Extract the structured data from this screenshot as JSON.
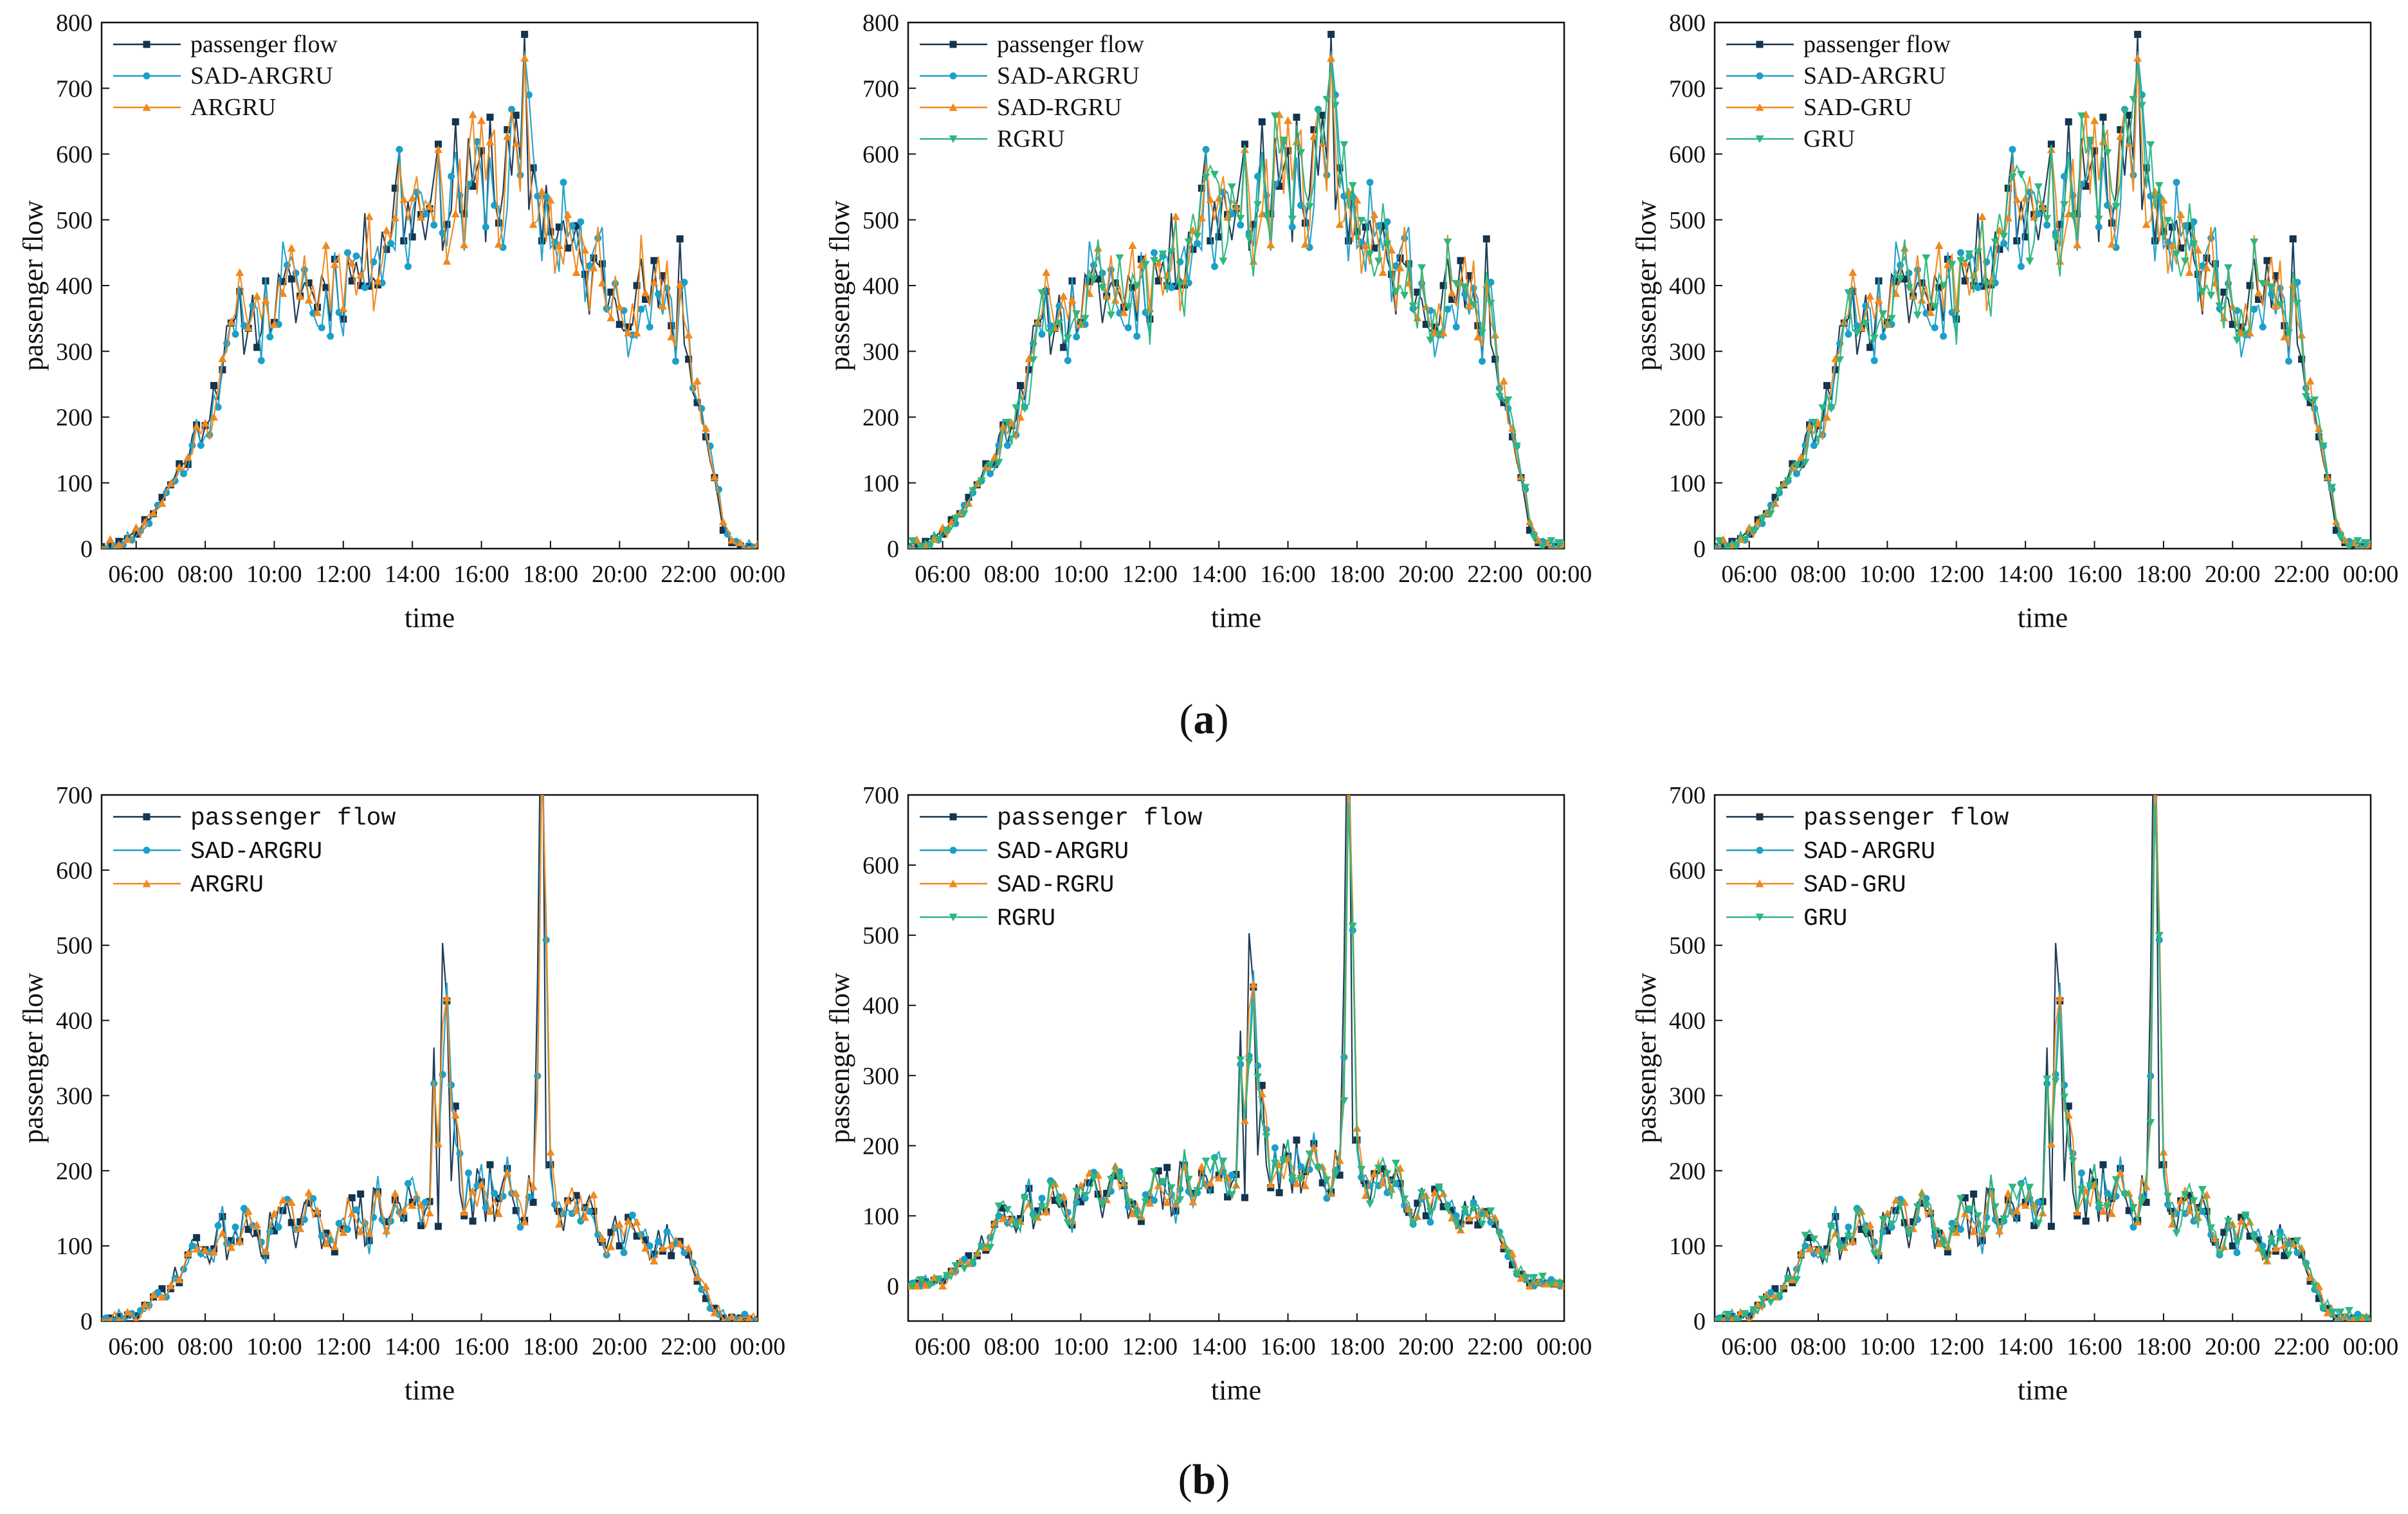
{
  "figure": {
    "caption_a": {
      "open": "(",
      "letter": "a",
      "close": ")"
    },
    "caption_b": {
      "open": "(",
      "letter": "b",
      "close": ")"
    }
  },
  "colors": {
    "passenger flow": "#14344f",
    "SAD-ARGRU": "#1c9fc8",
    "ARGRU": "#f0891e",
    "SAD-RGRU": "#f0891e",
    "SAD-GRU": "#f0891e",
    "RGRU": "#2db77e",
    "GRU": "#2db77e"
  },
  "chart_data": [
    {
      "id": "a1",
      "type": "line",
      "row": "a",
      "profile": "a",
      "seed": 11,
      "xlabel": "time",
      "ylabel": "passenger flow",
      "xlim": [
        5,
        24
      ],
      "ylim": [
        0,
        800
      ],
      "yticks": [
        0,
        100,
        200,
        300,
        400,
        500,
        600,
        700,
        800
      ],
      "xticks": [
        "06:00",
        "08:00",
        "10:00",
        "12:00",
        "14:00",
        "16:00",
        "18:00",
        "20:00",
        "22:00",
        "00:00"
      ],
      "legend_position": "top-left",
      "legend_font": "serif",
      "series": [
        {
          "name": "passenger flow",
          "marker": "square"
        },
        {
          "name": "SAD-ARGRU",
          "marker": "circle"
        },
        {
          "name": "ARGRU",
          "marker": "triangle-up"
        }
      ]
    },
    {
      "id": "a2",
      "type": "line",
      "row": "a",
      "profile": "a",
      "seed": 11,
      "xlabel": "time",
      "ylabel": "passenger flow",
      "xlim": [
        5,
        24
      ],
      "ylim": [
        0,
        800
      ],
      "yticks": [
        0,
        100,
        200,
        300,
        400,
        500,
        600,
        700,
        800
      ],
      "xticks": [
        "06:00",
        "08:00",
        "10:00",
        "12:00",
        "14:00",
        "16:00",
        "18:00",
        "20:00",
        "22:00",
        "00:00"
      ],
      "legend_position": "top-left",
      "legend_font": "serif",
      "series": [
        {
          "name": "passenger flow",
          "marker": "square"
        },
        {
          "name": "SAD-ARGRU",
          "marker": "circle"
        },
        {
          "name": "SAD-RGRU",
          "marker": "triangle-up"
        },
        {
          "name": "RGRU",
          "marker": "triangle-down"
        }
      ]
    },
    {
      "id": "a3",
      "type": "line",
      "row": "a",
      "profile": "a",
      "seed": 11,
      "xlabel": "time",
      "ylabel": "passenger flow",
      "xlim": [
        5,
        24
      ],
      "ylim": [
        0,
        800
      ],
      "yticks": [
        0,
        100,
        200,
        300,
        400,
        500,
        600,
        700,
        800
      ],
      "xticks": [
        "06:00",
        "08:00",
        "10:00",
        "12:00",
        "14:00",
        "16:00",
        "18:00",
        "20:00",
        "22:00",
        "00:00"
      ],
      "legend_position": "top-left",
      "legend_font": "serif",
      "series": [
        {
          "name": "passenger flow",
          "marker": "square"
        },
        {
          "name": "SAD-ARGRU",
          "marker": "circle"
        },
        {
          "name": "SAD-GRU",
          "marker": "triangle-up"
        },
        {
          "name": "GRU",
          "marker": "triangle-down"
        }
      ]
    },
    {
      "id": "b1",
      "type": "line",
      "row": "b",
      "profile": "b",
      "seed": 29,
      "xlabel": "time",
      "ylabel": "passenger flow",
      "xlim": [
        5,
        24
      ],
      "ylim": [
        0,
        700
      ],
      "yticks": [
        0,
        100,
        200,
        300,
        400,
        500,
        600,
        700
      ],
      "xticks": [
        "06:00",
        "08:00",
        "10:00",
        "12:00",
        "14:00",
        "16:00",
        "18:00",
        "20:00",
        "22:00",
        "00:00"
      ],
      "legend_position": "top-left",
      "legend_font": "mono",
      "series": [
        {
          "name": "passenger flow",
          "marker": "square"
        },
        {
          "name": "SAD-ARGRU",
          "marker": "circle"
        },
        {
          "name": "ARGRU",
          "marker": "triangle-up"
        }
      ]
    },
    {
      "id": "b2",
      "type": "line",
      "row": "b",
      "profile": "b",
      "seed": 29,
      "xlabel": "time",
      "ylabel": "passenger flow",
      "xlim": [
        5,
        24
      ],
      "ylim": [
        -50,
        700
      ],
      "yticks": [
        0,
        100,
        200,
        300,
        400,
        500,
        600,
        700
      ],
      "xticks": [
        "06:00",
        "08:00",
        "10:00",
        "12:00",
        "14:00",
        "16:00",
        "18:00",
        "20:00",
        "22:00",
        "00:00"
      ],
      "legend_position": "top-left",
      "legend_font": "mono",
      "series": [
        {
          "name": "passenger flow",
          "marker": "square"
        },
        {
          "name": "SAD-ARGRU",
          "marker": "circle"
        },
        {
          "name": "SAD-RGRU",
          "marker": "triangle-up"
        },
        {
          "name": "RGRU",
          "marker": "triangle-down"
        }
      ]
    },
    {
      "id": "b3",
      "type": "line",
      "row": "b",
      "profile": "b",
      "seed": 29,
      "xlabel": "time",
      "ylabel": "passenger flow",
      "xlim": [
        5,
        24
      ],
      "ylim": [
        0,
        700
      ],
      "yticks": [
        0,
        100,
        200,
        300,
        400,
        500,
        600,
        700
      ],
      "xticks": [
        "06:00",
        "08:00",
        "10:00",
        "12:00",
        "14:00",
        "16:00",
        "18:00",
        "20:00",
        "22:00",
        "00:00"
      ],
      "legend_position": "top-left",
      "legend_font": "mono",
      "series": [
        {
          "name": "passenger flow",
          "marker": "square"
        },
        {
          "name": "SAD-ARGRU",
          "marker": "circle"
        },
        {
          "name": "SAD-GRU",
          "marker": "triangle-up"
        },
        {
          "name": "GRU",
          "marker": "triangle-down"
        }
      ]
    }
  ]
}
